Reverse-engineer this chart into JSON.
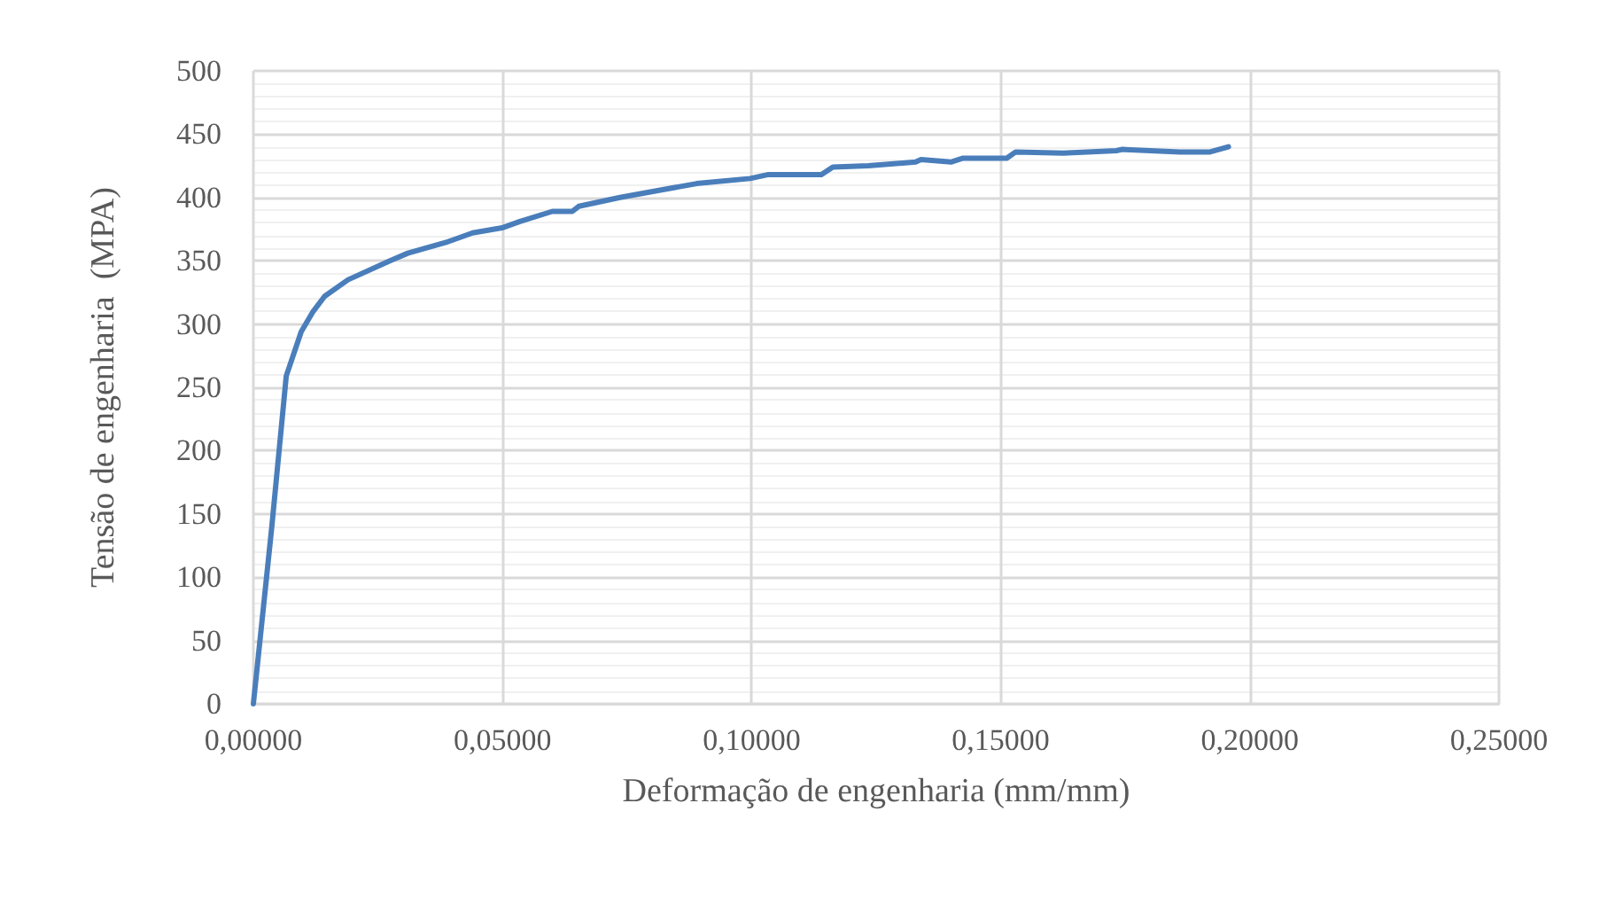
{
  "chart_data": {
    "type": "line",
    "xlabel": "Deformação de engenharia (mm/mm)",
    "ylabel": "Tensão de engenharia  (MPA)",
    "x": [
      0,
      0.0037,
      0.0066,
      0.0096,
      0.012,
      0.0143,
      0.019,
      0.0274,
      0.031,
      0.039,
      0.044,
      0.0499,
      0.0535,
      0.06,
      0.064,
      0.0653,
      0.0736,
      0.0819,
      0.089,
      0.0997,
      0.1032,
      0.114,
      0.1163,
      0.1234,
      0.1329,
      0.134,
      0.14,
      0.1423,
      0.1512,
      0.153,
      0.1625,
      0.1732,
      0.1744,
      0.186,
      0.192,
      0.1957
    ],
    "series": [
      {
        "color": "#4a7ebb",
        "values": [
          0,
          140,
          259,
          294,
          310,
          322,
          335,
          350,
          356,
          365,
          372,
          376,
          381,
          389,
          389,
          393,
          400,
          406,
          411,
          415,
          418,
          418,
          424,
          425,
          428,
          430,
          428,
          431,
          431,
          436,
          435,
          437,
          438,
          436,
          436,
          440
        ]
      }
    ],
    "xlim": [
      0,
      0.25
    ],
    "xticks": [
      {
        "value": 0,
        "label": "0,00000"
      },
      {
        "value": 0.05,
        "label": "0,05000"
      },
      {
        "value": 0.1,
        "label": "0,10000"
      },
      {
        "value": 0.15,
        "label": "0,15000"
      },
      {
        "value": 0.2,
        "label": "0,20000"
      },
      {
        "value": 0.25,
        "label": "0,25000"
      }
    ],
    "ylim": [
      0,
      500
    ],
    "yticks": [
      0,
      50,
      100,
      150,
      200,
      250,
      300,
      350,
      400,
      450,
      500
    ],
    "grid": true,
    "marker": "none",
    "line_style": "solid"
  }
}
